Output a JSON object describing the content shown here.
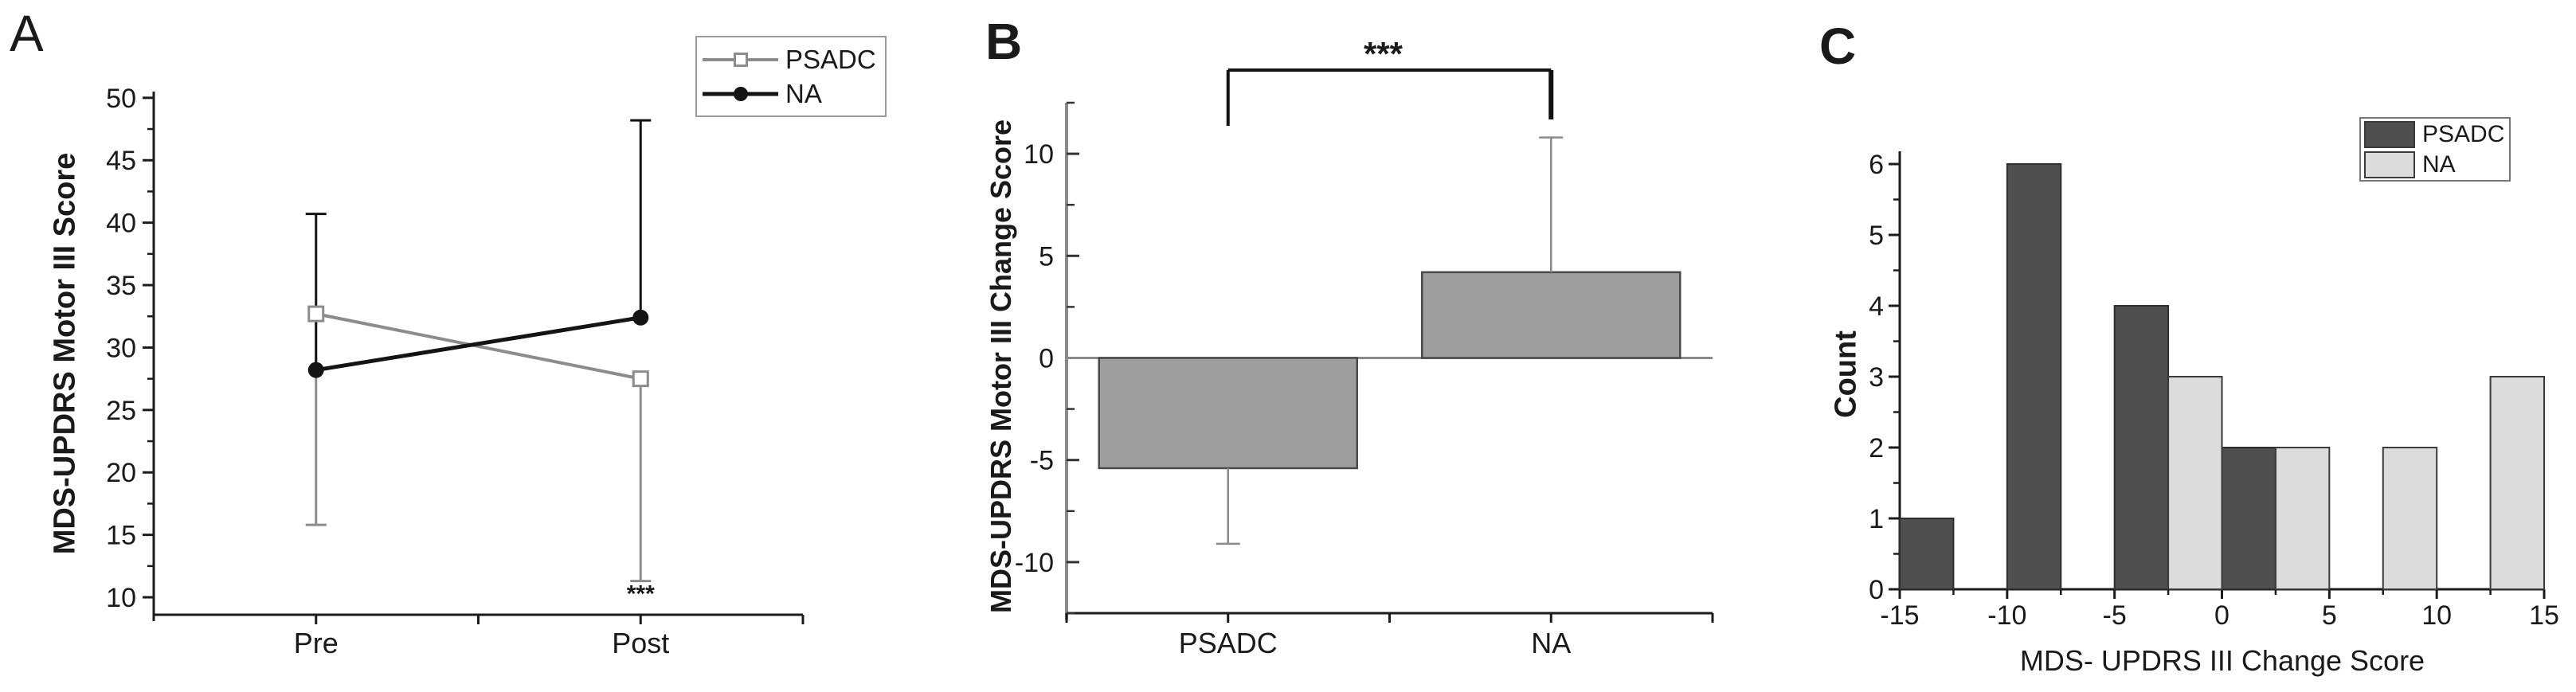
{
  "figure_background": "#ffffff",
  "text_color": "#1a1a1a",
  "axis_color": "#1b1b1b",
  "panels": {
    "A": {
      "letter": "A",
      "ylabel": "MDS-UPDRS Motor III Score",
      "significance": "***",
      "chart": {
        "type": "line",
        "categories": [
          "Pre",
          "Post"
        ],
        "yticks": [
          10,
          15,
          20,
          25,
          30,
          35,
          40,
          45,
          50
        ],
        "ylim": [
          8.6,
          50.5
        ],
        "legend_position": "top-right",
        "series": [
          {
            "name": "PSADC",
            "color": "#8c8c8c",
            "marker": "open-square",
            "values": [
              32.7,
              27.5
            ],
            "err_low_cap": [
              15.8,
              11.3
            ],
            "err_high_cap": [
              null,
              null
            ]
          },
          {
            "name": "NA",
            "color": "#141414",
            "marker": "filled-circle",
            "values": [
              28.2,
              32.4
            ],
            "err_low_cap": [
              null,
              null
            ],
            "err_high_cap": [
              40.7,
              48.2
            ]
          }
        ],
        "annotation": {
          "text": "***",
          "category": "Post",
          "y": 10.3
        }
      }
    },
    "B": {
      "letter": "B",
      "ylabel": "MDS-UPDRS Motor III Change Score",
      "significance": "***",
      "chart": {
        "type": "bar",
        "categories": [
          "PSADC",
          "NA"
        ],
        "values": [
          -5.4,
          4.2
        ],
        "err_caps": [
          -9.1,
          10.8
        ],
        "yticks": [
          -10,
          -5,
          0,
          5,
          10
        ],
        "minor_tick_step": 2.5,
        "ylim": [
          -12.5,
          12.5
        ],
        "bar_fill": "#9e9e9e",
        "bar_stroke": "#4a4a4a",
        "zero_line_color": "#8a8a8a",
        "bracket": {
          "text": "***",
          "from": "PSADC",
          "to": "NA"
        }
      }
    },
    "C": {
      "letter": "C",
      "ylabel": "Count",
      "xlabel": "MDS- UPDRS III Change Score",
      "chart": {
        "type": "histogram",
        "xticks": [
          -15,
          -10,
          -5,
          0,
          5,
          10,
          15
        ],
        "yticks": [
          0,
          1,
          2,
          3,
          4,
          5,
          6
        ],
        "xlim": [
          -15,
          15
        ],
        "ylim": [
          0,
          6.18
        ],
        "bin_width": 2.5,
        "x_minor_step": 2.5,
        "y_minor_step": 0.5,
        "legend_position": "top-right",
        "series": [
          {
            "name": "PSADC",
            "color": "#4f4f4f",
            "stroke": "#2d2d2d",
            "bars": [
              {
                "x0": -15,
                "x1": -12.5,
                "count": 1
              },
              {
                "x0": -10,
                "x1": -7.5,
                "count": 6
              },
              {
                "x0": -5,
                "x1": -2.5,
                "count": 4
              },
              {
                "x0": 0,
                "x1": 2.5,
                "count": 2
              }
            ]
          },
          {
            "name": "NA",
            "color": "#dcdcdc",
            "stroke": "#3a3a3a",
            "bars": [
              {
                "x0": -2.5,
                "x1": 0,
                "count": 3
              },
              {
                "x0": 2.5,
                "x1": 5,
                "count": 2
              },
              {
                "x0": 7.5,
                "x1": 10,
                "count": 2
              },
              {
                "x0": 12.5,
                "x1": 15,
                "count": 3
              }
            ]
          }
        ]
      }
    }
  }
}
